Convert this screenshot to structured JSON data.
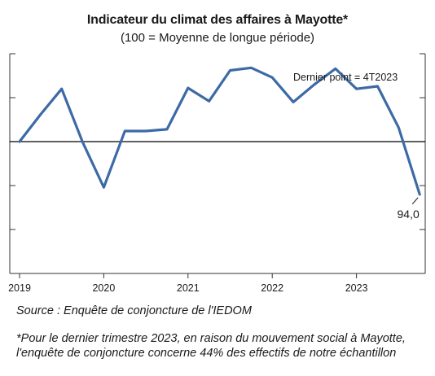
{
  "header": {
    "title": "Indicateur du climat des affaires à Mayotte*",
    "subtitle": "(100 = Moyenne de longue période)"
  },
  "annotations": {
    "last_point": "Dernier point = 4T2023",
    "last_value_label": "94,0"
  },
  "footer": {
    "source": "Source : Enquête de conjoncture de l'IEDOM",
    "footnote_line1": "*Pour le dernier trimestre 2023, en raison du mouvement social à Mayotte,",
    "footnote_line2": "l'enquête de conjoncture concerne 44% des effectifs de notre échantillon"
  },
  "colors": {
    "line": "#3d6aa6",
    "axis": "#333333"
  },
  "chart_data": {
    "type": "line",
    "title": "Indicateur du climat des affaires à Mayotte*",
    "subtitle": "(100 = Moyenne de longue période)",
    "x_tick_labels": [
      "2019",
      "2020",
      "2021",
      "2022",
      "2023"
    ],
    "x": [
      "2019T1",
      "2019T2",
      "2019T3",
      "2019T4",
      "2020T1",
      "2020T2",
      "2020T3",
      "2020T4",
      "2021T1",
      "2021T2",
      "2021T3",
      "2021T4",
      "2022T1",
      "2022T2",
      "2022T3",
      "2022T4",
      "2023T1",
      "2023T2",
      "2023T3",
      "2023T4"
    ],
    "series": [
      {
        "values": [
          100.0,
          103.1,
          106.0,
          99.9,
          94.8,
          101.2,
          101.2,
          101.4,
          106.1,
          104.6,
          108.1,
          108.4,
          107.3,
          104.5,
          106.5,
          108.3,
          106.0,
          106.3,
          101.6,
          94.0
        ]
      }
    ],
    "y_range": [
      85,
      110
    ],
    "y_gridlines": false,
    "reference_line": 100,
    "legend": "none"
  }
}
